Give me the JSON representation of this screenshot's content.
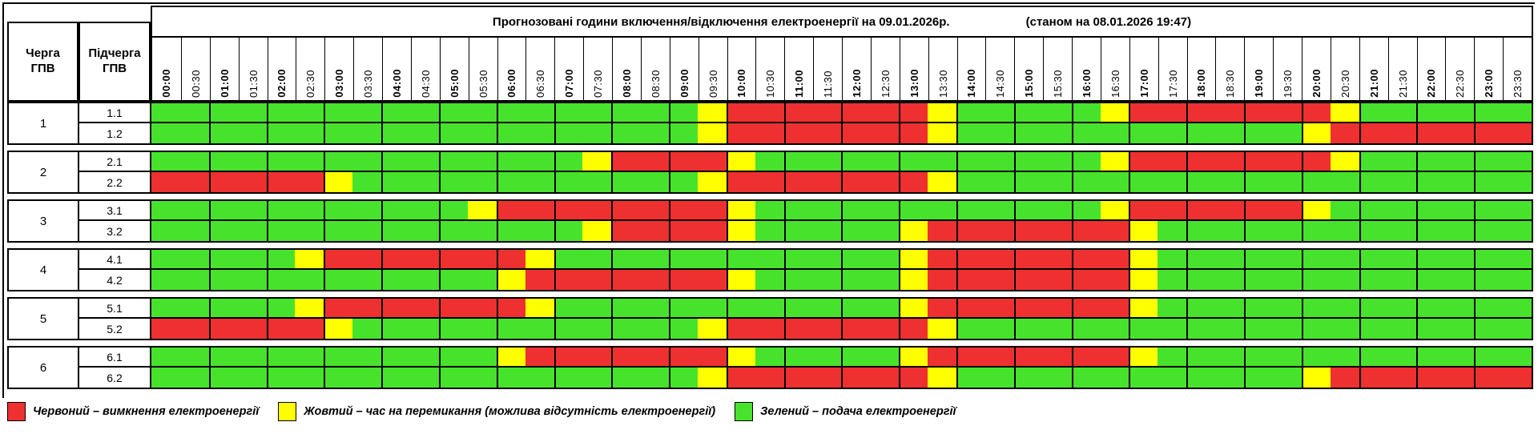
{
  "title_bar": {
    "title": "Прогнозовані години включення/відключення електроенергії на 09.01.2026р.",
    "status": "(станом на 08.01.2026 19:47)"
  },
  "columns": {
    "queue_header": "Черга ГПВ",
    "subqueue_header": "Підчерга ГПВ",
    "time_slots": [
      "00:00",
      "00:30",
      "01:00",
      "01:30",
      "02:00",
      "02:30",
      "03:00",
      "03:30",
      "04:00",
      "04:30",
      "05:00",
      "05:30",
      "06:00",
      "06:30",
      "07:00",
      "07:30",
      "08:00",
      "08:30",
      "09:00",
      "09:30",
      "10:00",
      "10:30",
      "11:00",
      "11:30",
      "12:00",
      "12:30",
      "13:00",
      "13:30",
      "14:00",
      "14:30",
      "15:00",
      "15:30",
      "16:00",
      "16:30",
      "17:00",
      "17:30",
      "18:00",
      "18:30",
      "19:00",
      "19:30",
      "20:00",
      "20:30",
      "21:00",
      "21:30",
      "22:00",
      "22:30",
      "23:00",
      "23:30"
    ]
  },
  "colors": {
    "red": "#ee3030",
    "yellow": "#ffff00",
    "green": "#47e32c"
  },
  "state_legend_keys": {
    "G": "green",
    "Y": "yellow",
    "R": "red"
  },
  "legend": {
    "items": [
      {
        "key": "red",
        "label": "Червоний – вимкнення електроенергії"
      },
      {
        "key": "yellow",
        "label": "Жовтий – час на перемикання (можлива відсутність електроенергії)"
      },
      {
        "key": "green",
        "label": "Зелений – подача електроенергії"
      }
    ]
  },
  "schedule": {
    "groups": [
      {
        "queue": "1",
        "rows": [
          {
            "subqueue": "1.1",
            "slots": "GGGGGGGGGGGGGGGGGGGYRRRRRRRYGGGGGYRRRRRRRYGGGGGG"
          },
          {
            "subqueue": "1.2",
            "slots": "GGGGGGGGGGGGGGGGGGGYRRRRRRRYGGGGGGGGGGGGYRRRRRRR"
          }
        ]
      },
      {
        "queue": "2",
        "rows": [
          {
            "subqueue": "2.1",
            "slots": "GGGGGGGGGGGGGGGYRRRRYGGGGGGGGGGGGYRRRRRRRYGGGGGG"
          },
          {
            "subqueue": "2.2",
            "slots": "RRRRRRYGGGGGGGGGGGGYRRRRRRRYGGGGGGGGGGGGGGGGGGGG"
          }
        ]
      },
      {
        "queue": "3",
        "rows": [
          {
            "subqueue": "3.1",
            "slots": "GGGGGGGGGGGYRRRRRRRRYGGGGGGGGGGGGYRRRRRRYGGGGGGG"
          },
          {
            "subqueue": "3.2",
            "slots": "GGGGGGGGGGGGGGGYRRRRYGGGGGYRRRRRRRYGGGGGGGGGGGGG"
          }
        ]
      },
      {
        "queue": "4",
        "rows": [
          {
            "subqueue": "4.1",
            "slots": "GGGGGYRRRRRRRYGGGGGGGGGGGGYRRRRRRRYGGGGGGGGGGGGG"
          },
          {
            "subqueue": "4.2",
            "slots": "GGGGGGGGGGGGYRRRRRRRYGGGGGYRRRRRRRYGGGGGGGGGGGGG"
          }
        ]
      },
      {
        "queue": "5",
        "rows": [
          {
            "subqueue": "5.1",
            "slots": "GGGGGYRRRRRRRYGGGGGGGGGGGGYRRRRRRRYGGGGGGGGGGGGG"
          },
          {
            "subqueue": "5.2",
            "slots": "RRRRRRYGGGGGGGGGGGGYRRRRRRRYGGGGGGGGGGGGGGGGGGGG"
          }
        ]
      },
      {
        "queue": "6",
        "rows": [
          {
            "subqueue": "6.1",
            "slots": "GGGGGGGGGGGGYRRRRRRRYGGGGGYRRRRRRRYGGGGGGGGGGGGG"
          },
          {
            "subqueue": "6.2",
            "slots": "GGGGGGGGGGGGGGGGGGGYRRRRRRRYGGGGGGGGGGGGYRRRRRRR"
          }
        ]
      }
    ]
  }
}
